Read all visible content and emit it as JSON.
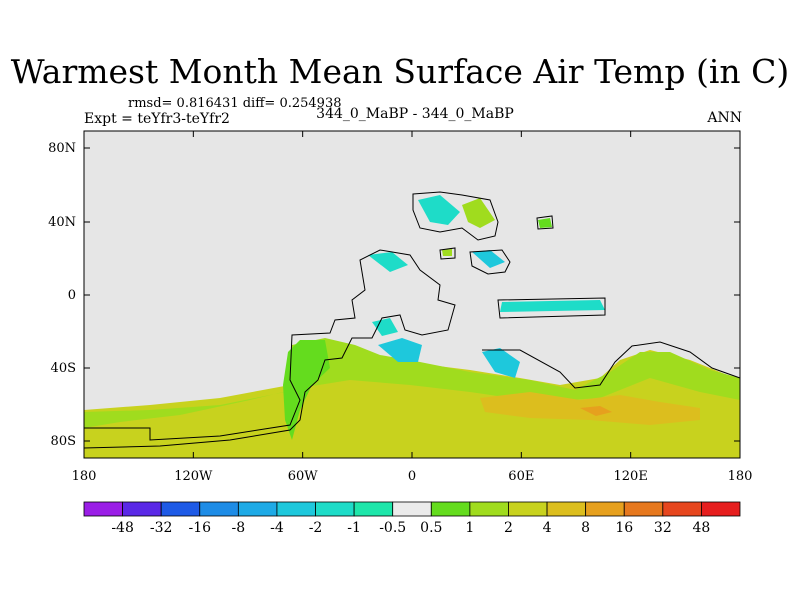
{
  "title": "Warmest Month Mean Surface Air Temp (in C)",
  "stats": "rmsd= 0.816431  diff= 0.254938",
  "expt": "Expt = teYfr3-teYfr2",
  "center_label": "344_0_MaBP - 344_0_MaBP",
  "right_label": "ANN",
  "colors": {
    "background_field": "#e6e6e6",
    "continent_outline": "#000000"
  },
  "map": {
    "lat_ticks": [
      "80N",
      "40N",
      "0",
      "40S",
      "80S"
    ],
    "lon_ticks": [
      "180",
      "120W",
      "60W",
      "0",
      "60E",
      "120E",
      "180"
    ]
  },
  "colorbar": {
    "labels": [
      "-48",
      "-32",
      "-16",
      "-8",
      "-4",
      "-2",
      "-1",
      "-0.5",
      "0.5",
      "1",
      "2",
      "4",
      "8",
      "16",
      "32",
      "48"
    ],
    "colors": [
      "#9a1ee6",
      "#5a28e6",
      "#1e5ae6",
      "#1e8ce6",
      "#1eaae6",
      "#1ec8dc",
      "#1edcc8",
      "#1ee6aa",
      "#ebebeb",
      "#64dc1e",
      "#a0dc1e",
      "#c8d21e",
      "#dcbe1e",
      "#e6a01e",
      "#e6781e",
      "#e6461e",
      "#e61e1e"
    ]
  }
}
